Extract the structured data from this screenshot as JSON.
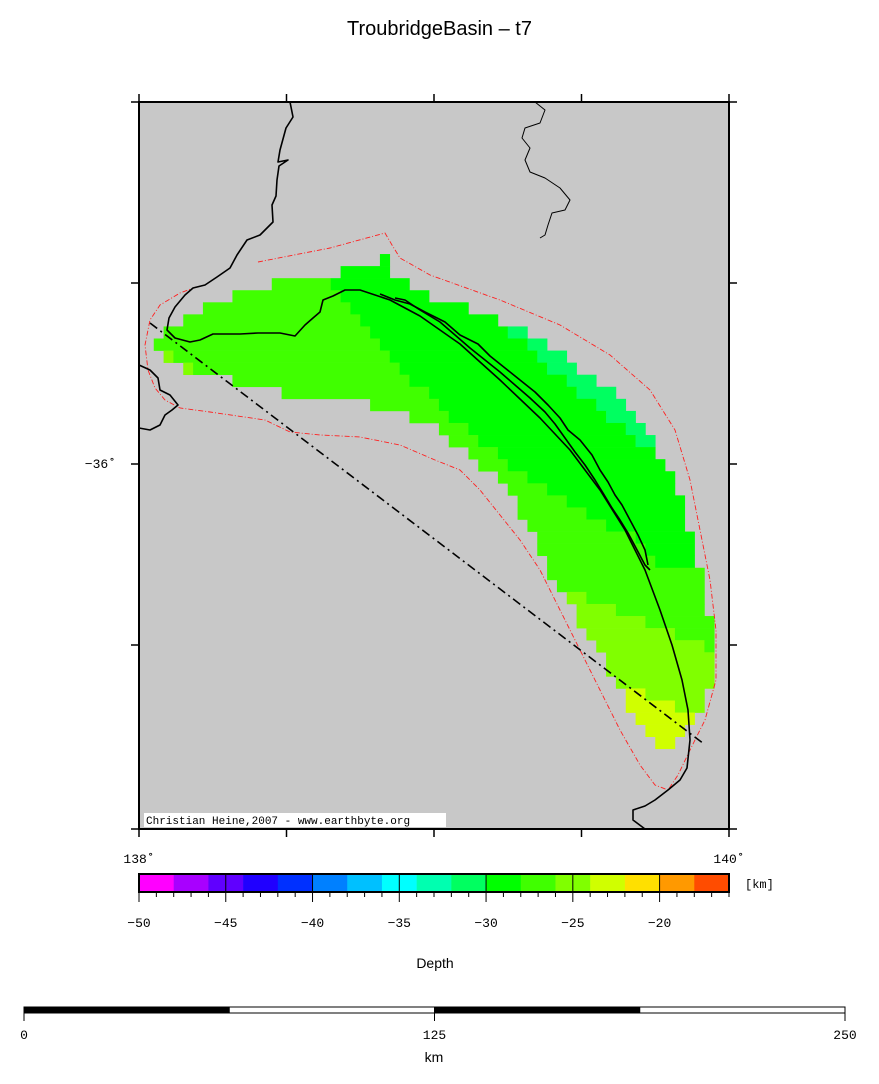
{
  "title": "TroubridgeBasin – t7",
  "map": {
    "lon_range": [
      138,
      140
    ],
    "lat_range": [
      -37,
      -35
    ],
    "background_color": "#c8c8c8",
    "lat_labels": [
      {
        "lat": -36,
        "text": "−36˚"
      }
    ],
    "lon_labels": [
      {
        "lon": 138,
        "text": "138˚"
      },
      {
        "lon": 140,
        "text": "140˚"
      }
    ],
    "credit": "Christian Heine,2007 - www.earthbyte.org"
  },
  "chart_data": {
    "type": "heatmap",
    "title": "TroubridgeBasin – t7",
    "value_label": "Depth",
    "unit": "km",
    "grid": {
      "lon_west": 138.0167,
      "lat_north": -35.42,
      "cell_arcmin": 2,
      "rows": [
        [
          [
            24,
            25,
            -29
          ]
        ],
        [
          [
            20,
            25,
            -29
          ]
        ],
        [
          [
            13,
            19,
            -27
          ],
          [
            19,
            27,
            -29
          ]
        ],
        [
          [
            9,
            20,
            -27
          ],
          [
            20,
            29,
            -29
          ]
        ],
        [
          [
            6,
            21,
            -27
          ],
          [
            21,
            33,
            -29
          ]
        ],
        [
          [
            4,
            22,
            -27
          ],
          [
            22,
            36,
            -29
          ]
        ],
        [
          [
            2,
            23,
            -27
          ],
          [
            23,
            37,
            -29
          ],
          [
            37,
            39,
            -31
          ]
        ],
        [
          [
            1,
            24,
            -27
          ],
          [
            24,
            39,
            -29
          ],
          [
            39,
            41,
            -31
          ]
        ],
        [
          [
            2,
            3,
            -25
          ],
          [
            3,
            25,
            -27
          ],
          [
            25,
            40,
            -29
          ],
          [
            40,
            43,
            -31
          ]
        ],
        [
          [
            4,
            5,
            -25
          ],
          [
            5,
            26,
            -27
          ],
          [
            26,
            41,
            -29
          ],
          [
            41,
            44,
            -31
          ]
        ],
        [
          [
            9,
            27,
            -27
          ],
          [
            27,
            43,
            -29
          ],
          [
            43,
            46,
            -31
          ]
        ],
        [
          [
            14,
            29,
            -27
          ],
          [
            29,
            44,
            -29
          ],
          [
            44,
            48,
            -31
          ]
        ],
        [
          [
            23,
            30,
            -27
          ],
          [
            30,
            46,
            -29
          ],
          [
            46,
            49,
            -31
          ]
        ],
        [
          [
            27,
            31,
            -27
          ],
          [
            31,
            47,
            -29
          ],
          [
            47,
            50,
            -31
          ]
        ],
        [
          [
            30,
            33,
            -27
          ],
          [
            33,
            49,
            -29
          ],
          [
            49,
            51,
            -31
          ]
        ],
        [
          [
            31,
            34,
            -27
          ],
          [
            34,
            50,
            -29
          ],
          [
            50,
            52,
            -31
          ]
        ],
        [
          [
            33,
            36,
            -27
          ],
          [
            36,
            52,
            -29
          ]
        ],
        [
          [
            34,
            37,
            -27
          ],
          [
            37,
            53,
            -29
          ]
        ],
        [
          [
            36,
            39,
            -27
          ],
          [
            39,
            54,
            -29
          ]
        ],
        [
          [
            37,
            41,
            -27
          ],
          [
            41,
            54,
            -29
          ]
        ],
        [
          [
            38,
            43,
            -27
          ],
          [
            43,
            55,
            -29
          ]
        ],
        [
          [
            38,
            45,
            -27
          ],
          [
            45,
            55,
            -29
          ]
        ],
        [
          [
            39,
            47,
            -27
          ],
          [
            47,
            55,
            -29
          ]
        ],
        [
          [
            40,
            50,
            -27
          ],
          [
            50,
            56,
            -29
          ]
        ],
        [
          [
            40,
            51,
            -27
          ],
          [
            51,
            56,
            -29
          ]
        ],
        [
          [
            41,
            52,
            -27
          ],
          [
            52,
            56,
            -29
          ]
        ],
        [
          [
            41,
            57,
            -27
          ]
        ],
        [
          [
            42,
            57,
            -27
          ]
        ],
        [
          [
            43,
            45,
            -25
          ],
          [
            45,
            57,
            -27
          ]
        ],
        [
          [
            44,
            48,
            -25
          ],
          [
            48,
            57,
            -27
          ]
        ],
        [
          [
            44,
            51,
            -25
          ],
          [
            51,
            58,
            -27
          ]
        ],
        [
          [
            45,
            54,
            -25
          ],
          [
            54,
            58,
            -27
          ]
        ],
        [
          [
            46,
            57,
            -25
          ],
          [
            57,
            58,
            -27
          ]
        ],
        [
          [
            47,
            58,
            -25
          ]
        ],
        [
          [
            47,
            58,
            -25
          ]
        ],
        [
          [
            48,
            58,
            -25
          ]
        ],
        [
          [
            49,
            51,
            -23
          ],
          [
            51,
            57,
            -25
          ]
        ],
        [
          [
            49,
            54,
            -23
          ],
          [
            54,
            57,
            -25
          ]
        ],
        [
          [
            50,
            56,
            -23
          ]
        ],
        [
          [
            51,
            55,
            -23
          ]
        ],
        [
          [
            52,
            54,
            -23
          ]
        ]
      ]
    }
  },
  "colorbar": {
    "min": -50,
    "max": -16,
    "step": 2,
    "colors": [
      "#ff00ff",
      "#a800ff",
      "#6000ff",
      "#2000ff",
      "#0030ff",
      "#0080ff",
      "#00c0ff",
      "#00ffff",
      "#00ffb0",
      "#00ff60",
      "#00ff00",
      "#40ff00",
      "#80ff00",
      "#d0ff00",
      "#ffe000",
      "#ff9900",
      "#ff4c00"
    ],
    "tick_labels": [
      {
        "value": -50,
        "text": "−50"
      },
      {
        "value": -45,
        "text": "−45"
      },
      {
        "value": -40,
        "text": "−40"
      },
      {
        "value": -35,
        "text": "−35"
      },
      {
        "value": -30,
        "text": "−30"
      },
      {
        "value": -25,
        "text": "−25"
      },
      {
        "value": -20,
        "text": "−20"
      }
    ],
    "unit_label": "[km]",
    "title": "Depth"
  },
  "scalebar": {
    "max": 250,
    "segments": 4,
    "labels": [
      {
        "value": 0,
        "text": "0"
      },
      {
        "value": 125,
        "text": "125"
      },
      {
        "value": 250,
        "text": "250"
      }
    ],
    "unit": "km"
  }
}
